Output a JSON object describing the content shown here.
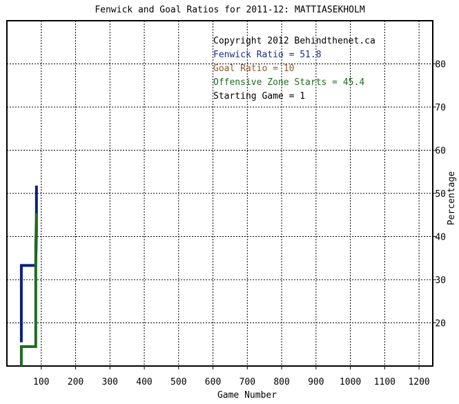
{
  "chart_data": {
    "type": "line",
    "title": "Fenwick and Goal Ratios for 2011-12: MATTIASEKHOLM",
    "xlabel": "Game Number",
    "ylabel": "Percentage",
    "xlim": [
      0,
      1240
    ],
    "ylim": [
      10,
      90
    ],
    "x_ticks": [
      100,
      200,
      300,
      400,
      500,
      600,
      700,
      800,
      900,
      1000,
      1100,
      1200
    ],
    "y_ticks": [
      20,
      30,
      40,
      50,
      60,
      70,
      80
    ],
    "grid": true,
    "legend": [
      {
        "text": "Copyright 2012 Behindthenet.ca",
        "color": "#000000"
      },
      {
        "text": "Fenwick Ratio = 51.8",
        "color": "#1f2f86"
      },
      {
        "text": "Goal Ratio = 10",
        "color": "#8b5a2b"
      },
      {
        "text": "Offensive Zone Starts = 45.4",
        "color": "#1f6b1f"
      },
      {
        "text": "Starting Game = 1",
        "color": "#000000"
      }
    ],
    "series": [
      {
        "color": "#0a1f7a",
        "points": [
          [
            42,
            15.5
          ],
          [
            42,
            33.3
          ],
          [
            84,
            33.3
          ],
          [
            84,
            33.5
          ],
          [
            86,
            41.5
          ],
          [
            86,
            51.8
          ]
        ]
      },
      {
        "color": "#1f6b1f",
        "points": [
          [
            42,
            10
          ],
          [
            42,
            14.5
          ],
          [
            84,
            14.5
          ],
          [
            84,
            38
          ],
          [
            86,
            45.4
          ]
        ]
      }
    ]
  }
}
